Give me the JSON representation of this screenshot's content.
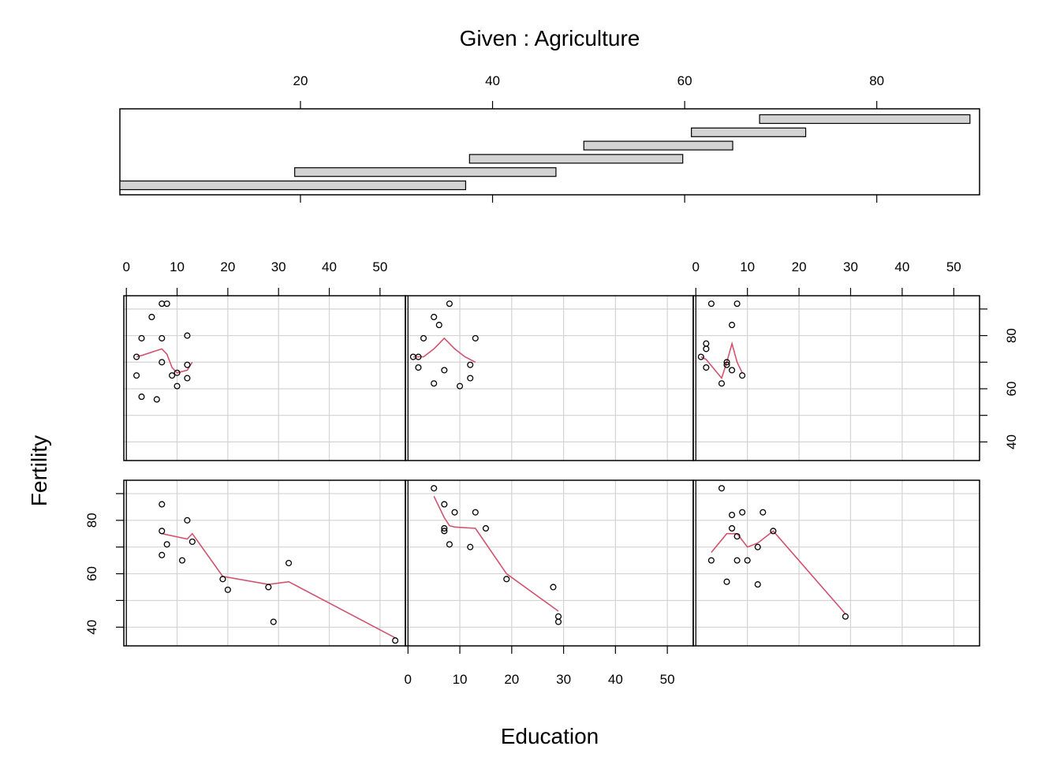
{
  "chart_data": {
    "type": "scatter",
    "title": "Given : Agriculture",
    "xlabel": "Education",
    "ylabel": "Fertility",
    "given_axis": {
      "name": "Agriculture",
      "range": [
        1.2,
        90.7
      ],
      "ticks": [
        "20",
        "40",
        "60",
        "80"
      ]
    },
    "given_intervals": [
      [
        1.2,
        37.2
      ],
      [
        19.4,
        46.6
      ],
      [
        37.6,
        59.8
      ],
      [
        49.5,
        65.0
      ],
      [
        60.7,
        72.6
      ],
      [
        67.8,
        89.7
      ]
    ],
    "x_axis": {
      "range": [
        -0.5,
        55
      ],
      "ticks": [
        "0",
        "10",
        "20",
        "30",
        "40",
        "50"
      ]
    },
    "y_axis": {
      "range": [
        33,
        95
      ],
      "ticks": [
        "40",
        "60",
        "80"
      ]
    },
    "grid": true,
    "panels": [
      {
        "points": [
          [
            7,
            92
          ],
          [
            8,
            92
          ],
          [
            5,
            87
          ],
          [
            12,
            80
          ],
          [
            7,
            79
          ],
          [
            3,
            79
          ],
          [
            2,
            72
          ],
          [
            7,
            70
          ],
          [
            12,
            69
          ],
          [
            10,
            66
          ],
          [
            9,
            65
          ],
          [
            12,
            64
          ],
          [
            2,
            65
          ],
          [
            3,
            57
          ],
          [
            10,
            61
          ],
          [
            6,
            56
          ]
        ],
        "smooth": [
          [
            2,
            72
          ],
          [
            3,
            72.5
          ],
          [
            7,
            75
          ],
          [
            8,
            73
          ],
          [
            9,
            68
          ],
          [
            10,
            66
          ],
          [
            12,
            67
          ],
          [
            13,
            70
          ]
        ]
      },
      {
        "points": [
          [
            8,
            92
          ],
          [
            5,
            87
          ],
          [
            6,
            84
          ],
          [
            3,
            79
          ],
          [
            13,
            79
          ],
          [
            1,
            72
          ],
          [
            2,
            72
          ],
          [
            2,
            68
          ],
          [
            12,
            69
          ],
          [
            7,
            67
          ],
          [
            12,
            64
          ],
          [
            5,
            62
          ],
          [
            10,
            61
          ]
        ],
        "smooth": [
          [
            1,
            72
          ],
          [
            3,
            72
          ],
          [
            5,
            75
          ],
          [
            7,
            79
          ],
          [
            9,
            75
          ],
          [
            11,
            72
          ],
          [
            13,
            70
          ]
        ]
      },
      {
        "points": [
          [
            3,
            92
          ],
          [
            8,
            92
          ],
          [
            7,
            84
          ],
          [
            2,
            77
          ],
          [
            2,
            75
          ],
          [
            1,
            72
          ],
          [
            2,
            68
          ],
          [
            6,
            70
          ],
          [
            6,
            69
          ],
          [
            7,
            67
          ],
          [
            9,
            65
          ],
          [
            5,
            62
          ]
        ],
        "smooth": [
          [
            1,
            72
          ],
          [
            2,
            71
          ],
          [
            5,
            64
          ],
          [
            6,
            70
          ],
          [
            7,
            77
          ],
          [
            8,
            70
          ],
          [
            9,
            66
          ]
        ]
      },
      {
        "points": [
          [
            7,
            86
          ],
          [
            12,
            80
          ],
          [
            7,
            76
          ],
          [
            13,
            72
          ],
          [
            8,
            71
          ],
          [
            7,
            67
          ],
          [
            11,
            65
          ],
          [
            19,
            58
          ],
          [
            20,
            54
          ],
          [
            28,
            55
          ],
          [
            32,
            64
          ],
          [
            29,
            42
          ],
          [
            53,
            35
          ]
        ],
        "smooth": [
          [
            7,
            75
          ],
          [
            12,
            73
          ],
          [
            13,
            75
          ],
          [
            19,
            59
          ],
          [
            28,
            56
          ],
          [
            32,
            57
          ],
          [
            53,
            36
          ]
        ]
      },
      {
        "points": [
          [
            5,
            92
          ],
          [
            7,
            86
          ],
          [
            9,
            83
          ],
          [
            13,
            83
          ],
          [
            7,
            77
          ],
          [
            7,
            76
          ],
          [
            15,
            77
          ],
          [
            8,
            71
          ],
          [
            12,
            70
          ],
          [
            19,
            58
          ],
          [
            28,
            55
          ],
          [
            29,
            44
          ],
          [
            29,
            42
          ]
        ],
        "smooth": [
          [
            5,
            89
          ],
          [
            7,
            81
          ],
          [
            8,
            78
          ],
          [
            9,
            77.5
          ],
          [
            13,
            77
          ],
          [
            19,
            60
          ],
          [
            29,
            46
          ]
        ]
      },
      {
        "points": [
          [
            5,
            92
          ],
          [
            7,
            82
          ],
          [
            9,
            83
          ],
          [
            13,
            83
          ],
          [
            7,
            77
          ],
          [
            8,
            74
          ],
          [
            15,
            76
          ],
          [
            12,
            70
          ],
          [
            3,
            65
          ],
          [
            8,
            65
          ],
          [
            10,
            65
          ],
          [
            6,
            57
          ],
          [
            12,
            56
          ],
          [
            29,
            44
          ]
        ],
        "smooth": [
          [
            3,
            68
          ],
          [
            6,
            75
          ],
          [
            8,
            75
          ],
          [
            10,
            70
          ],
          [
            12,
            71.5
          ],
          [
            15,
            76
          ],
          [
            29,
            45
          ]
        ]
      }
    ]
  }
}
